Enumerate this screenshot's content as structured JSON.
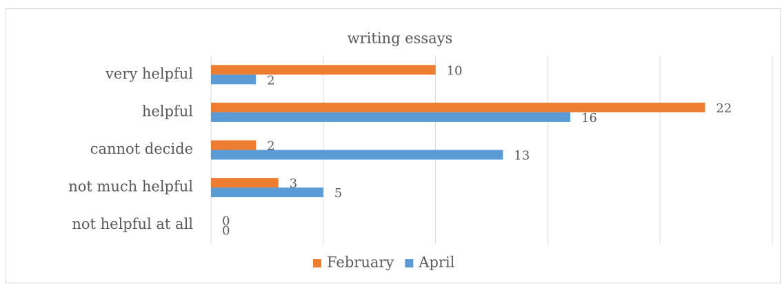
{
  "chart_data": {
    "type": "hbar",
    "title": "writing essays",
    "categories": [
      "very helpful",
      "helpful",
      "cannot decide",
      "not much helpful",
      "not helpful at all"
    ],
    "series": [
      {
        "name": "February",
        "color": "#ed7d31",
        "values": [
          10,
          22,
          2,
          3,
          0
        ]
      },
      {
        "name": "April",
        "color": "#5b9bd5",
        "values": [
          2,
          16,
          13,
          5,
          0
        ]
      }
    ],
    "xlim": [
      0,
      25
    ],
    "xticks": [
      0,
      5,
      10,
      15,
      20,
      25
    ],
    "grid": true,
    "legend": "bottom"
  }
}
